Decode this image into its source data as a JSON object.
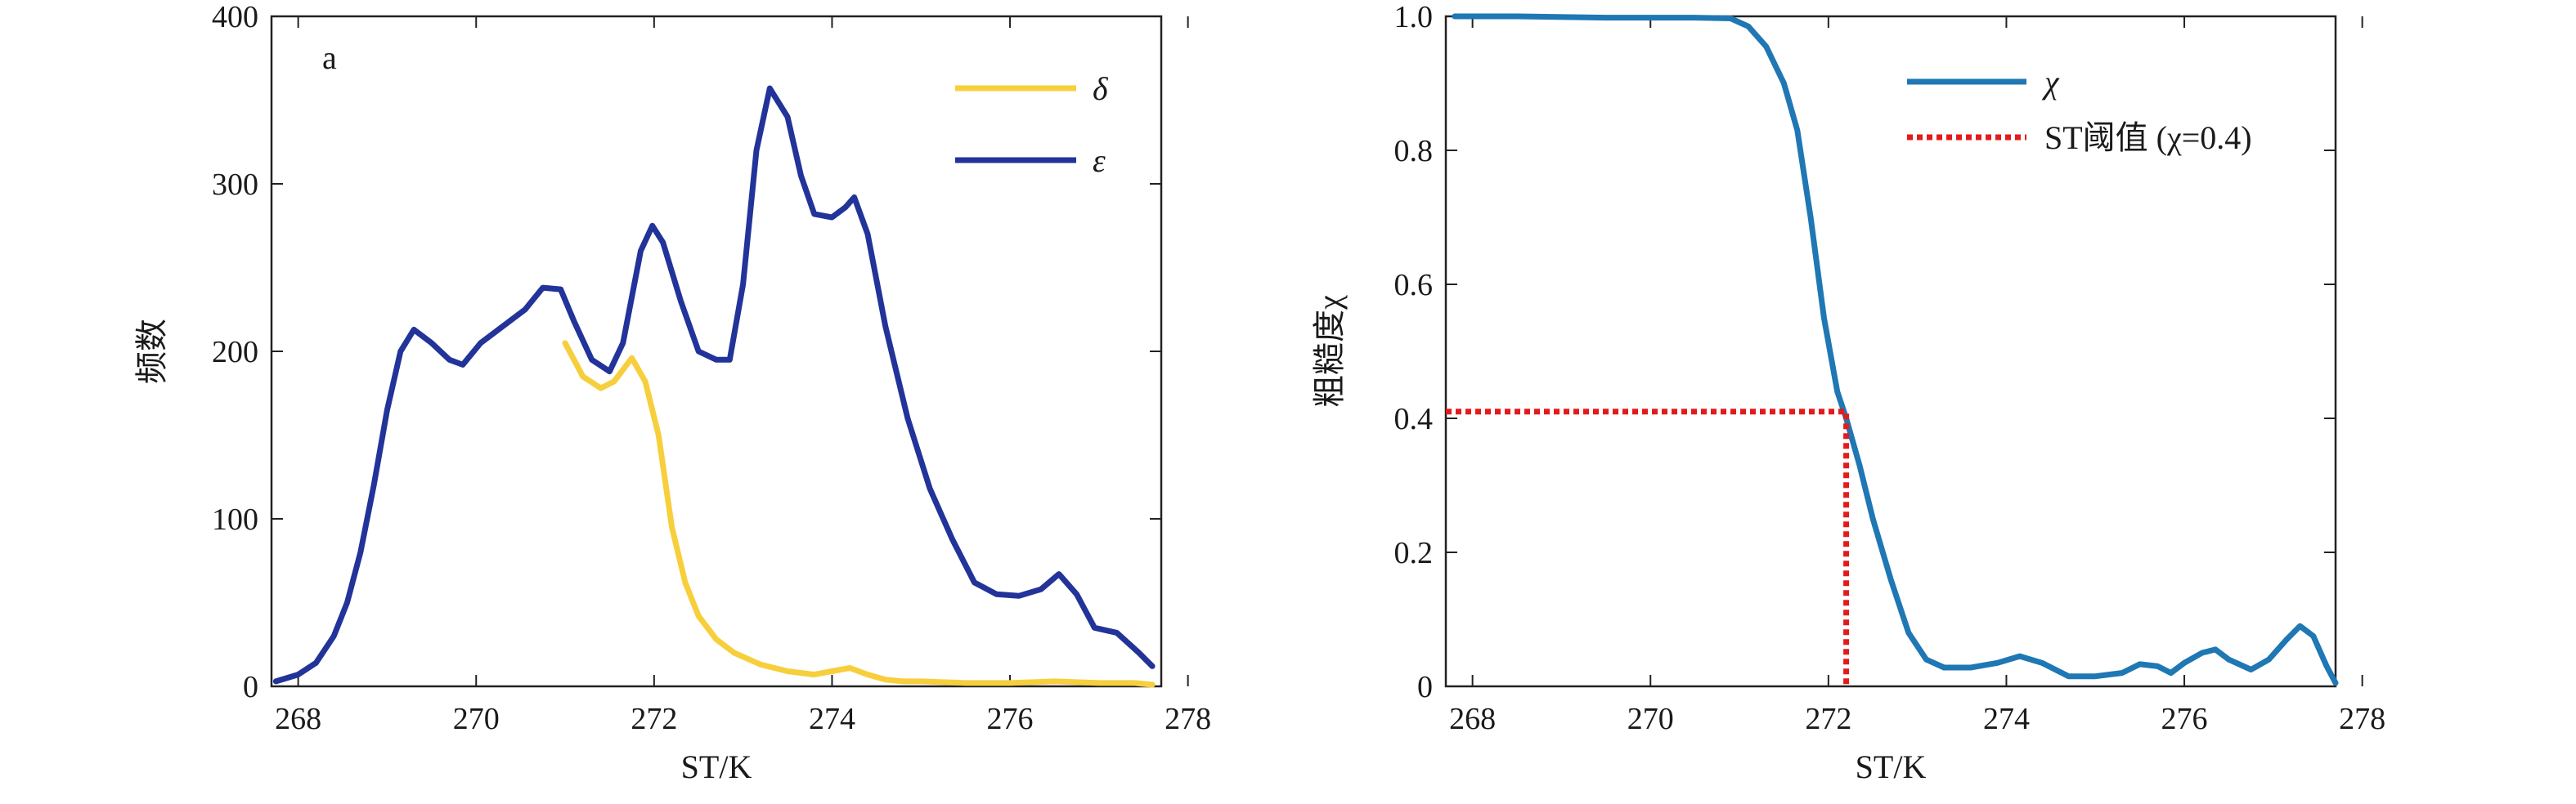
{
  "chart_data": [
    {
      "type": "line",
      "panel_label": "a",
      "xlabel": "ST/K",
      "ylabel": "频数",
      "xlim": [
        267.7,
        277.7
      ],
      "ylim": [
        0,
        400
      ],
      "xticks": [
        "268",
        "270",
        "272",
        "274",
        "276",
        "278"
      ],
      "xtick_values": [
        268,
        270,
        272,
        274,
        276,
        278
      ],
      "yticks": [
        "0",
        "100",
        "200",
        "300",
        "400"
      ],
      "ytick_values": [
        0,
        100,
        200,
        300,
        400
      ],
      "legend_position": "top-right",
      "grid": false,
      "series": [
        {
          "name": "δ",
          "color": "#f7cf3c",
          "points": [
            [
              271.0,
              205
            ],
            [
              271.2,
              185
            ],
            [
              271.4,
              178
            ],
            [
              271.55,
              182
            ],
            [
              271.75,
              196
            ],
            [
              271.9,
              182
            ],
            [
              272.05,
              150
            ],
            [
              272.2,
              95
            ],
            [
              272.35,
              62
            ],
            [
              272.5,
              42
            ],
            [
              272.7,
              28
            ],
            [
              272.9,
              20
            ],
            [
              273.2,
              13
            ],
            [
              273.5,
              9
            ],
            [
              273.8,
              7
            ],
            [
              274.0,
              9
            ],
            [
              274.2,
              11
            ],
            [
              274.4,
              7
            ],
            [
              274.6,
              4
            ],
            [
              274.8,
              3
            ],
            [
              275.0,
              3
            ],
            [
              275.5,
              2
            ],
            [
              276.0,
              2
            ],
            [
              276.5,
              3
            ],
            [
              277.0,
              2
            ],
            [
              277.4,
              2
            ],
            [
              277.6,
              1
            ]
          ]
        },
        {
          "name": "ε",
          "color": "#223399",
          "points": [
            [
              267.75,
              3
            ],
            [
              268.0,
              7
            ],
            [
              268.2,
              14
            ],
            [
              268.4,
              30
            ],
            [
              268.55,
              50
            ],
            [
              268.7,
              80
            ],
            [
              268.85,
              120
            ],
            [
              269.0,
              165
            ],
            [
              269.15,
              200
            ],
            [
              269.3,
              213
            ],
            [
              269.5,
              205
            ],
            [
              269.7,
              195
            ],
            [
              269.85,
              192
            ],
            [
              270.05,
              205
            ],
            [
              270.3,
              215
            ],
            [
              270.55,
              225
            ],
            [
              270.75,
              238
            ],
            [
              270.95,
              237
            ],
            [
              271.1,
              218
            ],
            [
              271.3,
              195
            ],
            [
              271.5,
              188
            ],
            [
              271.65,
              205
            ],
            [
              271.85,
              260
            ],
            [
              271.98,
              275
            ],
            [
              272.1,
              265
            ],
            [
              272.3,
              230
            ],
            [
              272.5,
              200
            ],
            [
              272.7,
              195
            ],
            [
              272.85,
              195
            ],
            [
              273.0,
              240
            ],
            [
              273.15,
              320
            ],
            [
              273.3,
              357
            ],
            [
              273.5,
              340
            ],
            [
              273.65,
              305
            ],
            [
              273.8,
              282
            ],
            [
              274.0,
              280
            ],
            [
              274.15,
              286
            ],
            [
              274.25,
              292
            ],
            [
              274.4,
              270
            ],
            [
              274.6,
              215
            ],
            [
              274.85,
              160
            ],
            [
              275.1,
              118
            ],
            [
              275.35,
              88
            ],
            [
              275.6,
              62
            ],
            [
              275.85,
              55
            ],
            [
              276.1,
              54
            ],
            [
              276.35,
              58
            ],
            [
              276.55,
              67
            ],
            [
              276.75,
              55
            ],
            [
              276.95,
              35
            ],
            [
              277.2,
              32
            ],
            [
              277.45,
              20
            ],
            [
              277.6,
              12
            ]
          ]
        }
      ]
    },
    {
      "type": "line",
      "xlabel": "ST/K",
      "ylabel": "粗糙度χ",
      "xlim": [
        267.7,
        277.7
      ],
      "ylim": [
        0,
        1.0
      ],
      "xticks": [
        "268",
        "270",
        "272",
        "274",
        "276",
        "278"
      ],
      "xtick_values": [
        268,
        270,
        272,
        274,
        276,
        278
      ],
      "yticks": [
        "0",
        "0.2",
        "0.4",
        "0.6",
        "0.8",
        "1.0"
      ],
      "ytick_values": [
        0,
        0.2,
        0.4,
        0.6,
        0.8,
        1.0
      ],
      "legend_position": "top-right",
      "grid": false,
      "series": [
        {
          "name": "χ",
          "color": "#1f77b4",
          "points": [
            [
              267.8,
              1.0
            ],
            [
              268.5,
              1.0
            ],
            [
              269.5,
              0.998
            ],
            [
              270.5,
              0.998
            ],
            [
              270.9,
              0.997
            ],
            [
              271.1,
              0.985
            ],
            [
              271.3,
              0.955
            ],
            [
              271.5,
              0.9
            ],
            [
              271.65,
              0.83
            ],
            [
              271.8,
              0.7
            ],
            [
              271.95,
              0.55
            ],
            [
              272.1,
              0.44
            ],
            [
              272.2,
              0.4
            ],
            [
              272.35,
              0.33
            ],
            [
              272.5,
              0.25
            ],
            [
              272.7,
              0.16
            ],
            [
              272.9,
              0.08
            ],
            [
              273.1,
              0.04
            ],
            [
              273.3,
              0.028
            ],
            [
              273.6,
              0.028
            ],
            [
              273.9,
              0.035
            ],
            [
              274.15,
              0.045
            ],
            [
              274.4,
              0.035
            ],
            [
              274.7,
              0.015
            ],
            [
              275.0,
              0.015
            ],
            [
              275.3,
              0.02
            ],
            [
              275.5,
              0.033
            ],
            [
              275.7,
              0.03
            ],
            [
              275.85,
              0.02
            ],
            [
              276.0,
              0.035
            ],
            [
              276.2,
              0.05
            ],
            [
              276.35,
              0.055
            ],
            [
              276.5,
              0.04
            ],
            [
              276.75,
              0.025
            ],
            [
              276.95,
              0.04
            ],
            [
              277.15,
              0.07
            ],
            [
              277.3,
              0.09
            ],
            [
              277.45,
              0.075
            ],
            [
              277.6,
              0.03
            ],
            [
              277.7,
              0.005
            ]
          ]
        },
        {
          "name": "ST阈值 (χ=0.4)",
          "color": "#e31a1c",
          "line_style": "dotted",
          "points": [
            [
              267.7,
              0.41
            ],
            [
              272.2,
              0.41
            ],
            [
              272.2,
              0.0
            ]
          ]
        }
      ]
    }
  ]
}
